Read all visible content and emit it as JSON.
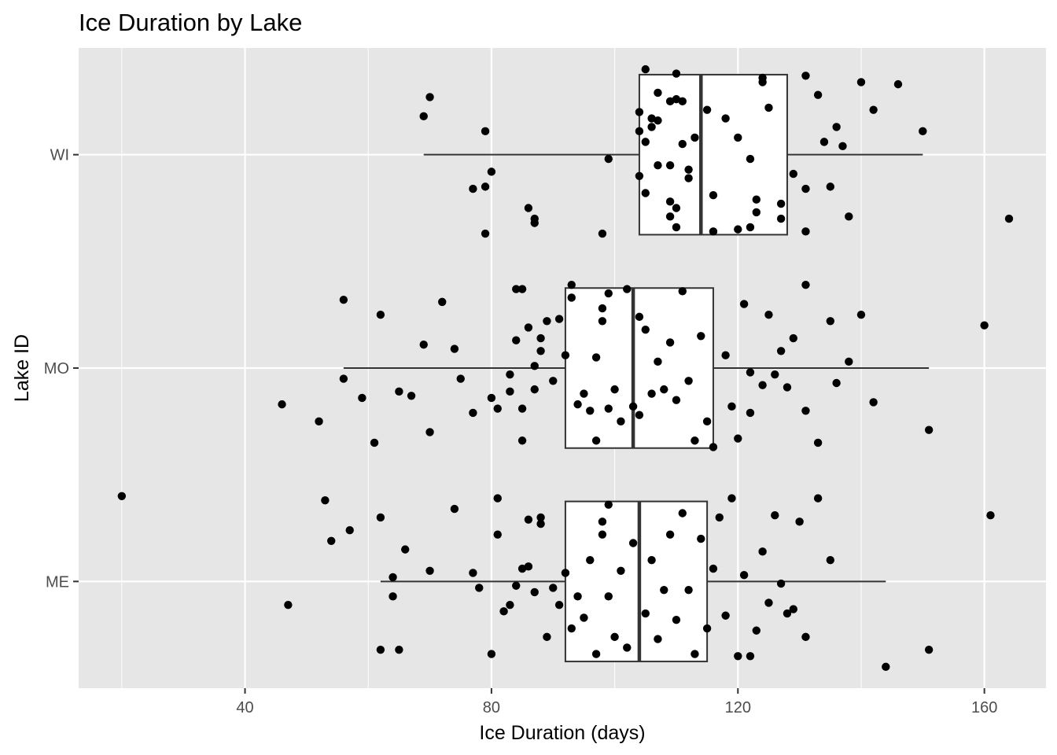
{
  "chart_data": {
    "type": "boxplot",
    "title": "Ice Duration by Lake",
    "xlabel": "Ice Duration (days)",
    "ylabel": "Lake ID",
    "xlim": [
      13,
      170
    ],
    "x_ticks": [
      40,
      80,
      120,
      160
    ],
    "x_tick_labels": [
      "40",
      "80",
      "120",
      "160"
    ],
    "categories": [
      "WI",
      "MO",
      "ME"
    ],
    "grid": true,
    "legend": "none",
    "colors": {
      "panel": "#e6e6e6",
      "grid": "#ffffff",
      "box_fill": "#ffffff",
      "box_stroke": "#333333",
      "point": "#000000",
      "tick_text": "#4d4d4d"
    },
    "boxes": [
      {
        "category": "WI",
        "whisker_low": 69,
        "q1": 104,
        "median": 114,
        "q3": 128,
        "whisker_high": 150,
        "points": [
          [
            79,
            0.37
          ],
          [
            87,
            0.32
          ],
          [
            98,
            0.37
          ],
          [
            87,
            0.3
          ],
          [
            86,
            0.25
          ],
          [
            77,
            0.16
          ],
          [
            79,
            0.15
          ],
          [
            80,
            0.08
          ],
          [
            79,
            -0.11
          ],
          [
            69,
            -0.18
          ],
          [
            70,
            -0.27
          ],
          [
            164,
            0.3
          ],
          [
            150,
            -0.11
          ],
          [
            146,
            -0.33
          ],
          [
            142,
            -0.21
          ],
          [
            140,
            -0.34
          ],
          [
            138,
            0.29
          ],
          [
            137,
            -0.04
          ],
          [
            136,
            -0.13
          ],
          [
            135,
            0.15
          ],
          [
            134,
            -0.06
          ],
          [
            133,
            -0.28
          ],
          [
            131,
            0.16
          ],
          [
            131,
            -0.37
          ],
          [
            131,
            0.36
          ],
          [
            129,
            0.09
          ],
          [
            127,
            0.23
          ],
          [
            127,
            0.3
          ],
          [
            125,
            -0.22
          ],
          [
            124,
            -0.36
          ],
          [
            124,
            -0.34
          ],
          [
            123,
            0.21
          ],
          [
            123,
            0.27
          ],
          [
            122,
            0.02
          ],
          [
            122,
            0.34
          ],
          [
            120,
            0.35
          ],
          [
            120,
            -0.08
          ],
          [
            118,
            -0.17
          ],
          [
            116,
            0.19
          ],
          [
            116,
            0.36
          ],
          [
            115,
            -0.21
          ],
          [
            113,
            -0.08
          ],
          [
            112,
            0.07
          ],
          [
            112,
            0.11
          ],
          [
            111,
            -0.05
          ],
          [
            107,
            -0.29
          ],
          [
            107,
            -0.16
          ],
          [
            106,
            -0.17
          ],
          [
            106,
            -0.13
          ],
          [
            107,
            0.05
          ],
          [
            109,
            -0.25
          ],
          [
            110,
            -0.26
          ],
          [
            109,
            0.05
          ],
          [
            111,
            -0.25
          ],
          [
            110,
            -0.38
          ],
          [
            110,
            0.34
          ],
          [
            109,
            0.22
          ],
          [
            110,
            0.25
          ],
          [
            109,
            0.29
          ],
          [
            104,
            -0.11
          ],
          [
            104,
            0.1
          ],
          [
            105,
            0.18
          ],
          [
            104,
            -0.2
          ],
          [
            105,
            -0.4
          ],
          [
            105,
            -0.06
          ],
          [
            99,
            0.02
          ]
        ]
      },
      {
        "category": "MO",
        "whisker_low": 56,
        "q1": 92,
        "median": 103,
        "q3": 116,
        "whisker_high": 151,
        "points": [
          [
            46,
            0.17
          ],
          [
            52,
            0.25
          ],
          [
            56,
            0.05
          ],
          [
            56,
            -0.32
          ],
          [
            59,
            0.14
          ],
          [
            61,
            0.35
          ],
          [
            62,
            -0.25
          ],
          [
            65,
            0.11
          ],
          [
            67,
            0.13
          ],
          [
            69,
            -0.11
          ],
          [
            70,
            0.3
          ],
          [
            72,
            -0.31
          ],
          [
            74,
            -0.09
          ],
          [
            75,
            0.05
          ],
          [
            77,
            0.21
          ],
          [
            80,
            0.14
          ],
          [
            81,
            0.19
          ],
          [
            83,
            0.03
          ],
          [
            84,
            -0.13
          ],
          [
            85,
            0.34
          ],
          [
            85,
            0.19
          ],
          [
            83,
            0.11
          ],
          [
            84,
            -0.37
          ],
          [
            85,
            -0.37
          ],
          [
            87,
            0.1
          ],
          [
            87,
            -0.01
          ],
          [
            88,
            -0.08
          ],
          [
            88,
            -0.14
          ],
          [
            86,
            -0.19
          ],
          [
            89,
            -0.22
          ],
          [
            90,
            0.06
          ],
          [
            91,
            -0.23
          ],
          [
            92,
            -0.06
          ],
          [
            93,
            -0.33
          ],
          [
            93,
            -0.39
          ],
          [
            94,
            0.17
          ],
          [
            95,
            0.12
          ],
          [
            96,
            0.2
          ],
          [
            97,
            0.34
          ],
          [
            97,
            -0.05
          ],
          [
            98,
            -0.22
          ],
          [
            99,
            0.19
          ],
          [
            100,
            0.1
          ],
          [
            101,
            0.25
          ],
          [
            102,
            -0.37
          ],
          [
            99,
            -0.35
          ],
          [
            98,
            -0.28
          ],
          [
            103,
            0.18
          ],
          [
            104,
            0.22
          ],
          [
            104,
            -0.24
          ],
          [
            105,
            -0.18
          ],
          [
            106,
            0.12
          ],
          [
            107,
            -0.03
          ],
          [
            108,
            0.1
          ],
          [
            109,
            -0.12
          ],
          [
            110,
            0.15
          ],
          [
            111,
            -0.36
          ],
          [
            112,
            0.06
          ],
          [
            113,
            0.34
          ],
          [
            114,
            -0.15
          ],
          [
            115,
            0.25
          ],
          [
            116,
            0.37
          ],
          [
            118,
            -0.06
          ],
          [
            119,
            0.18
          ],
          [
            120,
            0.33
          ],
          [
            121,
            -0.3
          ],
          [
            122,
            0.21
          ],
          [
            124,
            0.08
          ],
          [
            125,
            -0.25
          ],
          [
            126,
            0.03
          ],
          [
            128,
            0.09
          ],
          [
            129,
            -0.14
          ],
          [
            131,
            0.2
          ],
          [
            133,
            0.35
          ],
          [
            135,
            -0.22
          ],
          [
            136,
            0.07
          ],
          [
            138,
            -0.03
          ],
          [
            140,
            -0.25
          ],
          [
            142,
            0.16
          ],
          [
            151,
            0.29
          ],
          [
            160,
            -0.2
          ],
          [
            131,
            -0.39
          ],
          [
            122,
            0.02
          ],
          [
            127,
            -0.08
          ]
        ]
      },
      {
        "category": "ME",
        "whisker_low": 62,
        "q1": 92,
        "median": 104,
        "q3": 115,
        "whisker_high": 144,
        "points": [
          [
            20,
            -0.4
          ],
          [
            47,
            0.11
          ],
          [
            53,
            -0.38
          ],
          [
            54,
            -0.19
          ],
          [
            57,
            -0.24
          ],
          [
            62,
            -0.3
          ],
          [
            62,
            0.32
          ],
          [
            64,
            -0.02
          ],
          [
            64,
            0.07
          ],
          [
            65,
            0.32
          ],
          [
            66,
            -0.15
          ],
          [
            70,
            -0.05
          ],
          [
            74,
            -0.34
          ],
          [
            77,
            -0.04
          ],
          [
            78,
            0.03
          ],
          [
            81,
            -0.39
          ],
          [
            80,
            0.34
          ],
          [
            81,
            -0.22
          ],
          [
            82,
            0.14
          ],
          [
            83,
            0.11
          ],
          [
            84,
            0.02
          ],
          [
            85,
            -0.06
          ],
          [
            86,
            -0.07
          ],
          [
            86,
            -0.29
          ],
          [
            87,
            0.05
          ],
          [
            88,
            -0.27
          ],
          [
            88,
            -0.3
          ],
          [
            89,
            0.26
          ],
          [
            90,
            0.03
          ],
          [
            91,
            0.11
          ],
          [
            92,
            -0.04
          ],
          [
            93,
            0.22
          ],
          [
            94,
            0.07
          ],
          [
            95,
            0.17
          ],
          [
            96,
            -0.1
          ],
          [
            97,
            0.34
          ],
          [
            98,
            -0.22
          ],
          [
            99,
            0.07
          ],
          [
            100,
            0.26
          ],
          [
            101,
            -0.05
          ],
          [
            102,
            0.31
          ],
          [
            103,
            -0.18
          ],
          [
            98,
            -0.28
          ],
          [
            99,
            -0.36
          ],
          [
            105,
            0.15
          ],
          [
            106,
            -0.1
          ],
          [
            107,
            0.27
          ],
          [
            108,
            0.04
          ],
          [
            109,
            -0.22
          ],
          [
            110,
            0.18
          ],
          [
            111,
            -0.32
          ],
          [
            112,
            0.04
          ],
          [
            113,
            0.34
          ],
          [
            114,
            -0.2
          ],
          [
            115,
            0.22
          ],
          [
            116,
            -0.06
          ],
          [
            117,
            -0.3
          ],
          [
            118,
            0.16
          ],
          [
            119,
            -0.39
          ],
          [
            120,
            0.35
          ],
          [
            121,
            -0.03
          ],
          [
            122,
            0.35
          ],
          [
            123,
            0.23
          ],
          [
            124,
            -0.14
          ],
          [
            125,
            0.1
          ],
          [
            126,
            -0.31
          ],
          [
            127,
            0.01
          ],
          [
            128,
            0.15
          ],
          [
            129,
            0.13
          ],
          [
            130,
            -0.28
          ],
          [
            131,
            0.26
          ],
          [
            133,
            -0.39
          ],
          [
            135,
            -0.1
          ],
          [
            144,
            0.4
          ],
          [
            151,
            0.32
          ],
          [
            161,
            -0.31
          ]
        ]
      }
    ]
  }
}
